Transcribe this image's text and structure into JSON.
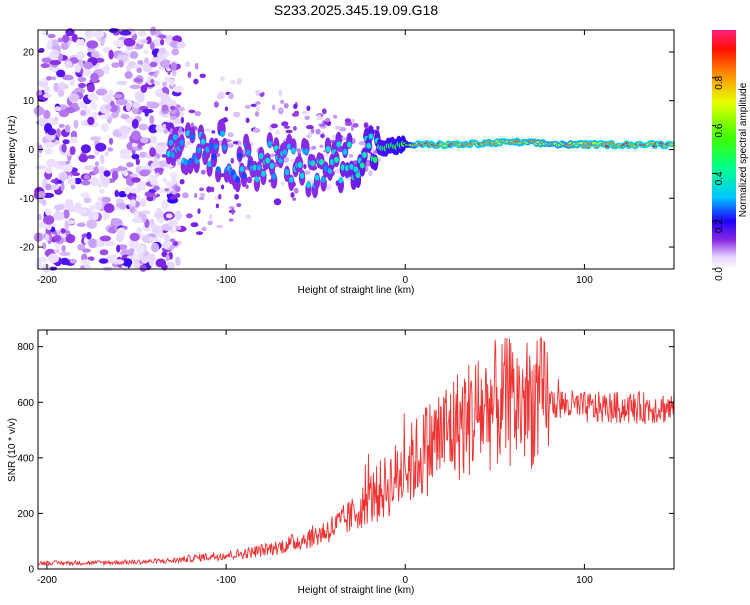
{
  "title": "S233.2025.345.19.09.G18",
  "chart_data": [
    {
      "type": "heatmap",
      "xlabel": "Height of straight line (km)",
      "ylabel": "Frequency (Hz)",
      "xlim": [
        -205,
        150
      ],
      "ylim": [
        -24.5,
        24.5
      ],
      "x_ticks": [
        -200,
        -100,
        0,
        100
      ],
      "y_ticks": [
        20,
        10,
        0,
        -10,
        -20
      ],
      "colorbar": {
        "label": "Normalized spectral amplitude",
        "range": [
          0,
          1
        ],
        "ticks": [
          "0.0",
          "0.2",
          "0.4",
          "0.6",
          "0.8"
        ],
        "tick_values": [
          0.0,
          0.2,
          0.4,
          0.6,
          0.8
        ]
      },
      "ridge": [
        {
          "x": -130,
          "freq": 1.0,
          "amp": 0.35
        },
        {
          "x": -110,
          "freq": 1.0,
          "amp": 0.3
        },
        {
          "x": -90,
          "freq": -3.0,
          "amp": 0.3
        },
        {
          "x": -75,
          "freq": -2.0,
          "amp": 0.35
        },
        {
          "x": -60,
          "freq": -4.0,
          "amp": 0.35
        },
        {
          "x": -45,
          "freq": -3.0,
          "amp": 0.35
        },
        {
          "x": -30,
          "freq": -2.0,
          "amp": 0.4
        },
        {
          "x": -20,
          "freq": 0.0,
          "amp": 0.45
        },
        {
          "x": -10,
          "freq": 0.5,
          "amp": 0.5
        },
        {
          "x": 0,
          "freq": 1.0,
          "amp": 0.55
        },
        {
          "x": 10,
          "freq": 1.0,
          "amp": 0.95
        },
        {
          "x": 30,
          "freq": 1.0,
          "amp": 0.9
        },
        {
          "x": 60,
          "freq": 1.5,
          "amp": 0.85
        },
        {
          "x": 90,
          "freq": 1.0,
          "amp": 0.8
        },
        {
          "x": 120,
          "freq": 1.0,
          "amp": 0.95
        },
        {
          "x": 150,
          "freq": 1.0,
          "amp": 0.95
        }
      ]
    },
    {
      "type": "line",
      "xlabel": "Height of straight line (km)",
      "ylabel": "SNR (10 * v/v)",
      "xlim": [
        -205,
        150
      ],
      "ylim": [
        0,
        860
      ],
      "x_ticks": [
        -200,
        -100,
        0,
        100
      ],
      "y_ticks": [
        0,
        200,
        400,
        600,
        800
      ],
      "color": "#ee3333",
      "series": [
        {
          "name": "SNR",
          "x": [
            -205,
            -180,
            -150,
            -130,
            -110,
            -90,
            -70,
            -50,
            -40,
            -30,
            -20,
            -10,
            0,
            10,
            20,
            30,
            40,
            50,
            60,
            70,
            80,
            90,
            100,
            110,
            120,
            130,
            150
          ],
          "values": [
            22,
            22,
            25,
            30,
            45,
            55,
            80,
            120,
            150,
            190,
            250,
            300,
            360,
            420,
            480,
            520,
            560,
            590,
            600,
            600,
            600,
            590,
            580,
            580,
            580,
            580,
            580
          ]
        }
      ]
    }
  ]
}
